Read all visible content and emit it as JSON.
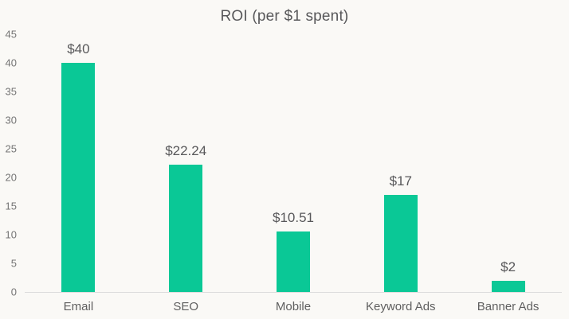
{
  "chart_data": {
    "type": "bar",
    "title": "ROI (per $1 spent)",
    "categories": [
      "Email",
      "SEO",
      "Mobile",
      "Keyword Ads",
      "Banner Ads"
    ],
    "values": [
      40,
      22.24,
      10.51,
      17,
      2
    ],
    "value_labels": [
      "$40",
      "$22.24",
      "$10.51",
      "$17",
      "$2"
    ],
    "xlabel": "",
    "ylabel": "",
    "ylim": [
      0,
      45
    ],
    "yticks": [
      45,
      40,
      35,
      30,
      25,
      20,
      15,
      10,
      5,
      0
    ],
    "grid": false,
    "legend_position": "none",
    "bar_color": "#0AC896",
    "background_color": "#FAF9F6",
    "axis_line_color": "#DCDCDC",
    "title_color": "#58585A",
    "value_label_color": "#58585A",
    "tick_label_color": "#757575",
    "category_label_color": "#5F5F5F"
  }
}
